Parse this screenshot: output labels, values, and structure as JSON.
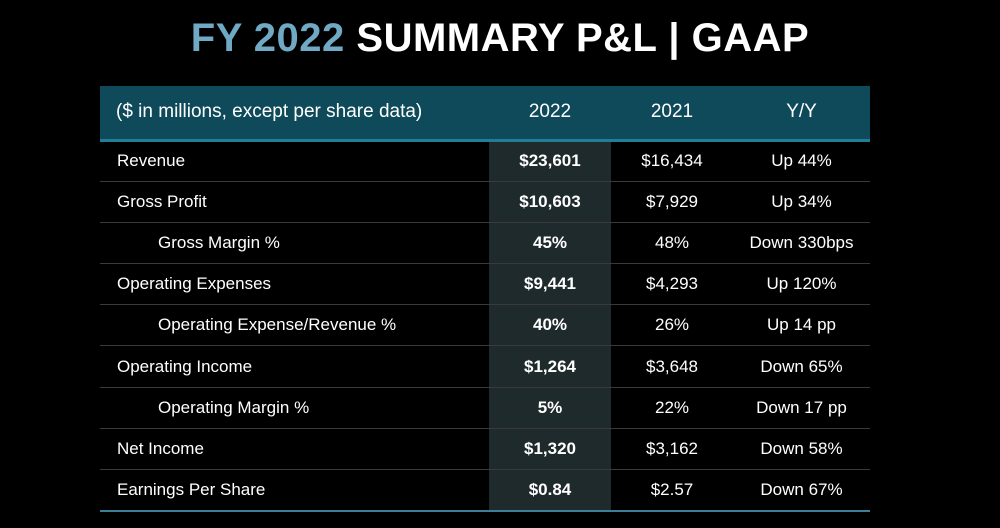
{
  "title": {
    "accent": "FY 2022",
    "main": "SUMMARY P&L  |  GAAP"
  },
  "table": {
    "headers": [
      "($ in millions, except per share data)",
      "2022",
      "2021",
      "Y/Y"
    ],
    "rows": [
      {
        "label": "Revenue",
        "indent": false,
        "v2022": "$23,601",
        "v2021": "$16,434",
        "yy": "Up 44%"
      },
      {
        "label": "Gross Profit",
        "indent": false,
        "v2022": "$10,603",
        "v2021": "$7,929",
        "yy": "Up 34%"
      },
      {
        "label": "Gross Margin %",
        "indent": true,
        "v2022": "45%",
        "v2021": "48%",
        "yy": "Down 330bps"
      },
      {
        "label": "Operating Expenses",
        "indent": false,
        "v2022": "$9,441",
        "v2021": "$4,293",
        "yy": "Up 120%"
      },
      {
        "label": "Operating Expense/Revenue %",
        "indent": true,
        "v2022": "40%",
        "v2021": "26%",
        "yy": "Up 14 pp"
      },
      {
        "label": "Operating Income",
        "indent": false,
        "v2022": "$1,264",
        "v2021": "$3,648",
        "yy": "Down 65%"
      },
      {
        "label": "Operating Margin %",
        "indent": true,
        "v2022": "5%",
        "v2021": "22%",
        "yy": "Down 17 pp"
      },
      {
        "label": "Net Income",
        "indent": false,
        "v2022": "$1,320",
        "v2021": "$3,162",
        "yy": "Down 58%"
      },
      {
        "label": "Earnings Per Share",
        "indent": false,
        "v2022": "$0.84",
        "v2021": "$2.57",
        "yy": "Down 67%"
      }
    ]
  },
  "colors": {
    "accent": "#6fa9c4",
    "header_bg": "#0e4a5a",
    "highlight_col_bg": "#1f2a2d",
    "background": "#000000"
  }
}
